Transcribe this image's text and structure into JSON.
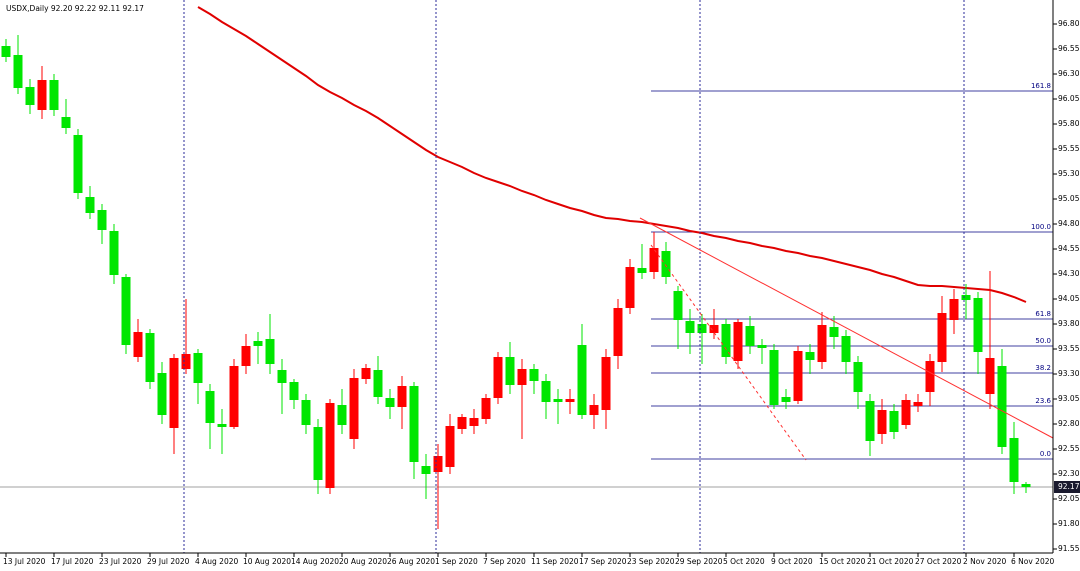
{
  "chart_data": {
    "type": "candlestick",
    "title": "USDX,Daily  92.20 92.22 92.11 92.17",
    "categories": [
      "13 Jul 2020",
      null,
      null,
      null,
      "17 Jul 2020",
      null,
      null,
      null,
      "23 Jul 2020",
      null,
      null,
      null,
      "29 Jul 2020",
      null,
      null,
      null,
      "4 Aug 2020",
      null,
      null,
      null,
      "10 Aug 2020",
      null,
      null,
      null,
      "14 Aug 2020",
      null,
      null,
      null,
      "20 Aug 2020",
      null,
      null,
      null,
      "26 Aug 2020",
      null,
      null,
      null,
      "1 Sep 2020",
      null,
      null,
      null,
      "7 Sep 2020",
      null,
      null,
      null,
      "11 Sep 2020",
      null,
      null,
      null,
      "17 Sep 2020",
      null,
      null,
      null,
      "23 Sep 2020",
      null,
      null,
      null,
      "29 Sep 2020",
      null,
      null,
      null,
      "5 Oct 2020",
      null,
      null,
      null,
      "9 Oct 2020",
      null,
      null,
      null,
      "15 Oct 2020",
      null,
      null,
      null,
      "21 Oct 2020",
      null,
      null,
      null,
      "27 Oct 2020",
      null,
      null,
      null,
      "2 Nov 2020",
      null,
      null,
      null,
      "6 Nov 2020",
      null
    ],
    "open": [
      96.58,
      96.49,
      96.17,
      95.94,
      96.24,
      95.87,
      95.69,
      95.07,
      94.94,
      94.73,
      94.27,
      93.47,
      93.71,
      93.31,
      92.76,
      93.35,
      93.51,
      93.13,
      92.8,
      92.77,
      93.38,
      93.63,
      93.65,
      93.34,
      93.22,
      93.04,
      92.77,
      92.16,
      92.99,
      92.65,
      93.25,
      93.34,
      93.06,
      92.97,
      93.18,
      92.38,
      92.32,
      92.37,
      92.75,
      92.78,
      92.85,
      93.06,
      93.47,
      93.19,
      93.35,
      93.23,
      93.05,
      93.02,
      93.59,
      92.89,
      92.94,
      93.48,
      93.96,
      94.36,
      94.32,
      94.53,
      94.13,
      93.83,
      93.8,
      93.71,
      93.8,
      93.43,
      93.78,
      93.59,
      93.54,
      93.07,
      93.03,
      93.52,
      93.42,
      93.77,
      93.68,
      93.42,
      93.03,
      92.7,
      92.93,
      92.79,
      92.98,
      93.12,
      93.42,
      93.84,
      94.09,
      94.06,
      93.1,
      93.38,
      92.66,
      92.2
    ],
    "high": [
      96.65,
      96.69,
      96.25,
      96.38,
      96.3,
      96.05,
      95.75,
      95.18,
      95.0,
      94.8,
      94.3,
      93.85,
      93.75,
      93.42,
      93.5,
      94.05,
      93.55,
      93.2,
      92.95,
      93.45,
      93.7,
      93.72,
      93.9,
      93.45,
      93.25,
      93.1,
      92.85,
      93.05,
      93.15,
      93.35,
      93.4,
      93.48,
      93.15,
      93.28,
      93.22,
      92.5,
      92.6,
      92.9,
      92.9,
      92.95,
      93.1,
      93.52,
      93.62,
      93.45,
      93.4,
      93.3,
      93.15,
      93.15,
      93.8,
      93.1,
      93.55,
      94.05,
      94.45,
      94.6,
      94.72,
      94.62,
      94.18,
      93.95,
      93.9,
      93.95,
      93.85,
      93.85,
      93.88,
      93.65,
      93.6,
      93.15,
      93.58,
      93.6,
      93.92,
      93.88,
      93.74,
      93.48,
      93.1,
      93.05,
      93.0,
      93.1,
      93.1,
      93.5,
      94.08,
      94.15,
      94.2,
      94.12,
      94.33,
      93.55,
      92.82,
      92.22
    ],
    "low": [
      96.42,
      96.1,
      95.9,
      95.85,
      95.88,
      95.7,
      95.05,
      94.85,
      94.6,
      94.2,
      93.5,
      93.42,
      93.15,
      92.8,
      92.5,
      93.3,
      93.0,
      92.55,
      92.5,
      92.75,
      93.3,
      93.4,
      93.3,
      92.9,
      92.95,
      92.7,
      92.1,
      92.1,
      92.7,
      92.55,
      93.2,
      93.0,
      92.85,
      92.75,
      92.25,
      92.05,
      91.75,
      92.3,
      92.7,
      92.7,
      92.8,
      93.0,
      93.1,
      92.65,
      93.1,
      92.85,
      92.8,
      92.9,
      92.85,
      92.75,
      92.75,
      93.35,
      93.9,
      94.25,
      94.25,
      94.2,
      93.55,
      93.5,
      93.4,
      93.65,
      93.4,
      93.35,
      93.5,
      93.4,
      92.95,
      92.95,
      93.0,
      93.3,
      93.35,
      93.55,
      93.3,
      92.95,
      92.48,
      92.6,
      92.65,
      92.75,
      92.92,
      92.98,
      93.32,
      93.7,
      93.85,
      93.3,
      92.95,
      92.5,
      92.1,
      92.11
    ],
    "close": [
      96.47,
      96.16,
      95.99,
      96.24,
      95.94,
      95.76,
      95.11,
      94.91,
      94.74,
      94.29,
      93.59,
      93.72,
      93.22,
      92.89,
      93.46,
      93.5,
      93.21,
      92.81,
      92.77,
      93.38,
      93.58,
      93.58,
      93.4,
      93.21,
      93.04,
      92.79,
      92.24,
      93.01,
      92.79,
      93.26,
      93.36,
      93.07,
      92.97,
      93.18,
      92.42,
      92.3,
      92.48,
      92.78,
      92.87,
      92.86,
      93.06,
      93.47,
      93.19,
      93.35,
      93.23,
      93.02,
      93.02,
      93.05,
      92.89,
      92.99,
      93.47,
      93.96,
      94.37,
      94.31,
      94.56,
      94.27,
      93.84,
      93.71,
      93.71,
      93.79,
      93.47,
      93.82,
      93.58,
      93.56,
      92.99,
      93.02,
      93.53,
      93.44,
      93.79,
      93.67,
      93.42,
      93.12,
      92.63,
      92.94,
      92.72,
      93.04,
      93.02,
      93.43,
      93.91,
      94.05,
      94.04,
      93.52,
      93.46,
      92.57,
      92.22,
      92.17
    ],
    "up_color": "#ff0000",
    "down_color": "#00e600",
    "ma": {
      "color": "#e00000",
      "values": [
        null,
        null,
        null,
        null,
        null,
        null,
        null,
        null,
        null,
        null,
        null,
        null,
        null,
        null,
        null,
        null,
        96.97,
        96.9,
        96.82,
        96.75,
        96.68,
        96.6,
        96.52,
        96.44,
        96.36,
        96.28,
        96.19,
        96.12,
        96.06,
        95.99,
        95.93,
        95.86,
        95.78,
        95.7,
        95.62,
        95.54,
        95.47,
        95.42,
        95.37,
        95.31,
        95.26,
        95.22,
        95.18,
        95.13,
        95.09,
        95.04,
        95.0,
        94.96,
        94.93,
        94.89,
        94.86,
        94.85,
        94.83,
        94.82,
        94.8,
        94.78,
        94.76,
        94.73,
        94.71,
        94.68,
        94.66,
        94.63,
        94.61,
        94.58,
        94.56,
        94.53,
        94.51,
        94.48,
        94.46,
        94.43,
        94.4,
        94.37,
        94.34,
        94.3,
        94.27,
        94.23,
        94.19,
        94.18,
        94.18,
        94.17,
        94.16,
        94.15,
        94.14,
        94.11,
        94.07,
        94.02
      ]
    },
    "fib": {
      "color": "#000080",
      "levels": [
        {
          "label": "161.8",
          "price": 96.13
        },
        {
          "label": "100.0",
          "price": 94.72
        },
        {
          "label": "61.8",
          "price": 93.85
        },
        {
          "label": "50.0",
          "price": 93.58
        },
        {
          "label": "38.2",
          "price": 93.31
        },
        {
          "label": "23.6",
          "price": 92.98
        },
        {
          "label": "0.0",
          "price": 92.45
        }
      ]
    },
    "current_price": {
      "value": 92.17,
      "label": "92.17"
    },
    "ylim": [
      91.51,
      97.04
    ],
    "yticks": [
      {
        "value": 96.8,
        "label": "96.80"
      },
      {
        "value": 96.55,
        "label": "96.55"
      },
      {
        "value": 96.3,
        "label": "96.30"
      },
      {
        "value": 96.05,
        "label": "96.05"
      },
      {
        "value": 95.8,
        "label": "95.80"
      },
      {
        "value": 95.55,
        "label": "95.55"
      },
      {
        "value": 95.3,
        "label": "95.30"
      },
      {
        "value": 95.05,
        "label": "95.05"
      },
      {
        "value": 94.8,
        "label": "94.80"
      },
      {
        "value": 94.55,
        "label": "94.55"
      },
      {
        "value": 94.3,
        "label": "94.30"
      },
      {
        "value": 94.05,
        "label": "94.05"
      },
      {
        "value": 93.8,
        "label": "93.80"
      },
      {
        "value": 93.55,
        "label": "93.55"
      },
      {
        "value": 93.3,
        "label": "93.30"
      },
      {
        "value": 93.05,
        "label": "93.05"
      },
      {
        "value": 92.8,
        "label": "92.80"
      },
      {
        "value": 92.55,
        "label": "92.55"
      },
      {
        "value": 92.3,
        "label": "92.30"
      },
      {
        "value": 92.05,
        "label": "92.05"
      },
      {
        "value": 91.8,
        "label": "91.80"
      },
      {
        "value": 91.55,
        "label": "91.55"
      }
    ]
  }
}
